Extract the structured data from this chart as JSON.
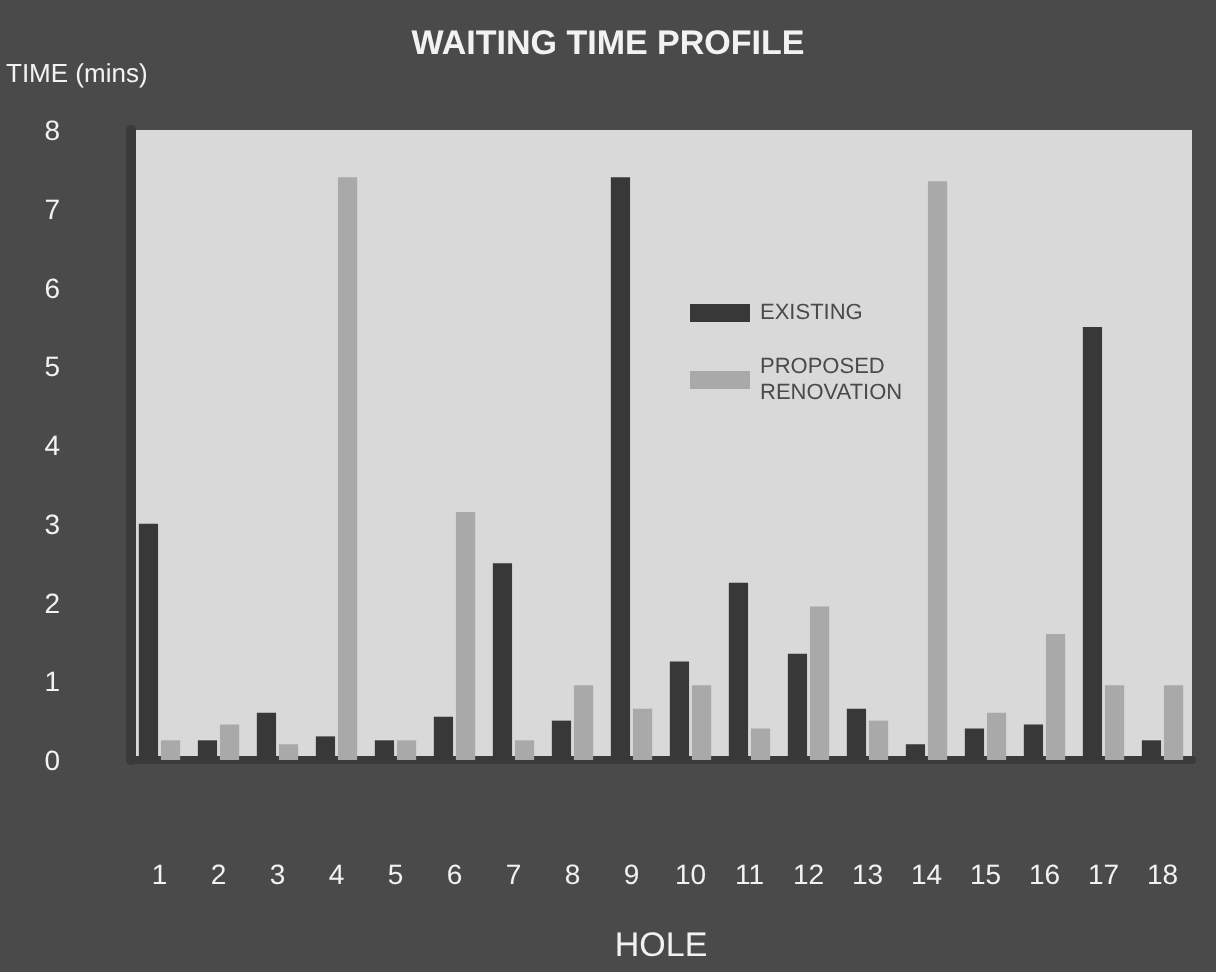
{
  "chart_data": {
    "type": "bar",
    "title": "WAITING TIME PROFILE",
    "xlabel": "HOLE",
    "ylabel": "TIME (mins)",
    "categories": [
      "1",
      "2",
      "3",
      "4",
      "5",
      "6",
      "7",
      "8",
      "9",
      "10",
      "11",
      "12",
      "13",
      "14",
      "15",
      "16",
      "17",
      "18"
    ],
    "series": [
      {
        "name": "EXISTING",
        "color": "#383838",
        "values": [
          3.0,
          0.25,
          0.6,
          0.3,
          0.25,
          0.55,
          2.5,
          0.5,
          7.4,
          1.25,
          2.25,
          1.35,
          0.65,
          0.2,
          0.4,
          0.45,
          5.5,
          0.25
        ]
      },
      {
        "name": "PROPOSED RENOVATION",
        "color": "#a9a9a9",
        "values": [
          0.25,
          0.45,
          0.2,
          7.4,
          0.25,
          3.15,
          0.25,
          0.95,
          0.65,
          0.95,
          0.4,
          1.95,
          0.5,
          7.35,
          0.6,
          1.6,
          0.95,
          0.95
        ]
      }
    ],
    "ylim": [
      0,
      8
    ],
    "yticks": [
      0,
      1,
      2,
      3,
      4,
      5,
      6,
      7,
      8
    ],
    "grid": false,
    "legend": "top"
  }
}
